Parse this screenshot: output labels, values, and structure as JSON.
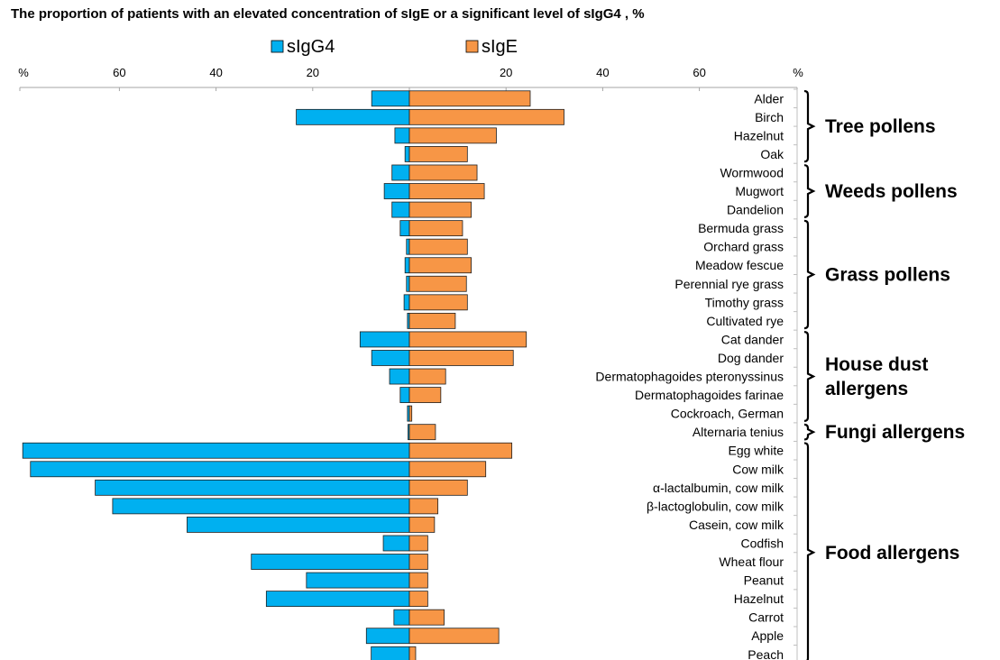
{
  "chart_data": {
    "type": "bar",
    "orientation": "horizontal-diverging",
    "title": "The proportion of patients with an elevated concentration of sIgE or a significant level of sIgG4 , %",
    "axis": {
      "unit_label": "%",
      "left_ticks": [
        "60",
        "40",
        "20"
      ],
      "right_ticks": [
        "20",
        "40",
        "60"
      ],
      "range": [
        -80,
        80
      ],
      "tick_values": [
        -60,
        -40,
        -20,
        0,
        20,
        40,
        60
      ]
    },
    "legend": {
      "position": "top",
      "items": [
        "sIgG4",
        "sIgE"
      ]
    },
    "colors": {
      "sIgG4": "#00b0f0",
      "sIgE": "#f79646"
    },
    "categories": [
      "Alder",
      "Birch",
      "Hazelnut",
      "Oak",
      "Wormwood",
      "Mugwort",
      "Dandelion",
      "Bermuda grass",
      "Orchard grass",
      "Meadow fescue",
      "Perennial rye grass",
      "Timothy grass",
      "Cultivated rye",
      "Cat dander",
      "Dog dander",
      "Dermatophagoides pteronyssinus",
      "Dermatophagoides farinae",
      "Cockroach, German",
      "Alternaria tenius",
      "Egg white",
      "Cow milk",
      "α-lactalbumin, cow milk",
      "β-lactoglobulin, cow milk",
      "Casein, cow milk",
      "Codfish",
      "Wheat flour",
      "Peanut",
      "Hazelnut",
      "Carrot",
      "Apple",
      "Peach"
    ],
    "series": [
      {
        "name": "sIgG4",
        "values": [
          7.8,
          23.4,
          3.0,
          0.9,
          3.6,
          5.2,
          3.6,
          1.9,
          0.6,
          0.9,
          0.6,
          1.1,
          0.4,
          10.2,
          7.8,
          4.1,
          1.9,
          0.4,
          0.2,
          80.0,
          78.4,
          65.0,
          61.4,
          46.0,
          5.4,
          32.7,
          21.3,
          29.6,
          3.2,
          8.9,
          7.9
        ]
      },
      {
        "name": "sIgE",
        "values": [
          25.0,
          32.0,
          18.0,
          12.0,
          14.0,
          15.5,
          12.8,
          11.0,
          12.0,
          12.8,
          11.8,
          12.0,
          9.5,
          24.2,
          21.5,
          7.5,
          6.5,
          0.5,
          5.4,
          21.2,
          15.8,
          12.0,
          5.9,
          5.2,
          3.8,
          3.8,
          3.8,
          3.8,
          7.2,
          18.5,
          1.3
        ]
      }
    ],
    "groups": [
      {
        "label": "Tree pollens",
        "first": 0,
        "last": 3,
        "lines": [
          "Tree pollens"
        ]
      },
      {
        "label": "Weeds pollens",
        "first": 4,
        "last": 6,
        "lines": [
          "Weeds pollens"
        ]
      },
      {
        "label": "Grass pollens",
        "first": 7,
        "last": 12,
        "lines": [
          "Grass pollens"
        ]
      },
      {
        "label": "House dust allergens",
        "first": 13,
        "last": 17,
        "lines": [
          "House dust",
          "allergens"
        ]
      },
      {
        "label": "Fungi allergens",
        "first": 18,
        "last": 18,
        "lines": [
          "Fungi allergens"
        ]
      },
      {
        "label": "Food allergens",
        "first": 19,
        "last": 30,
        "lines": [
          "Food allergens"
        ]
      }
    ],
    "grid": false
  }
}
